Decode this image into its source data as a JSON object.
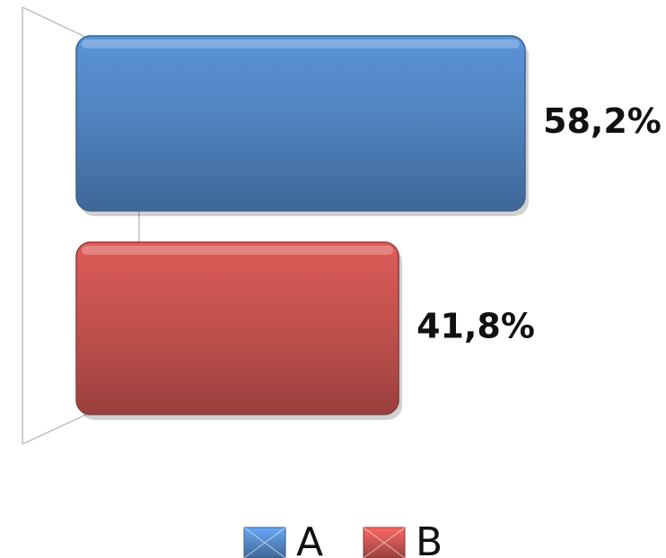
{
  "chart_data": {
    "type": "bar",
    "orientation": "horizontal",
    "series": [
      {
        "name": "A",
        "color": "#4f81bd",
        "values": [
          58.2
        ],
        "value_labels": [
          "58,2%"
        ]
      },
      {
        "name": "B",
        "color": "#c0504d",
        "values": [
          41.8
        ],
        "value_labels": [
          "41,8%"
        ]
      }
    ],
    "legend": "bottom"
  }
}
